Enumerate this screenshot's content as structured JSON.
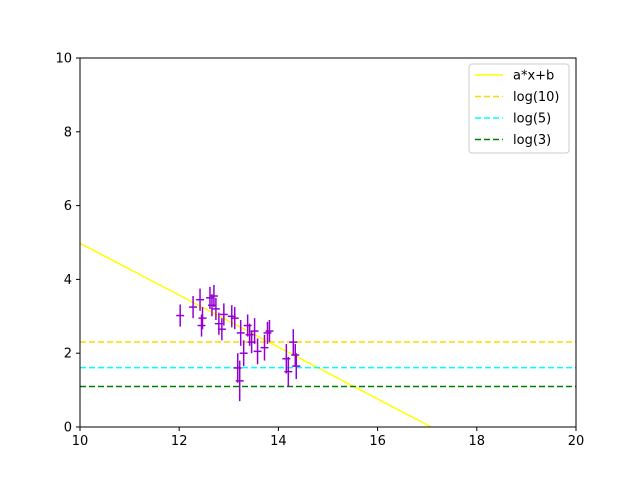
{
  "chart_data": {
    "type": "scatter",
    "title": "",
    "xlabel": "",
    "ylabel": "",
    "xlim": [
      10,
      20
    ],
    "ylim": [
      0,
      10
    ],
    "xticks": [
      10,
      12,
      14,
      16,
      18,
      20
    ],
    "yticks": [
      0,
      2,
      4,
      6,
      8,
      10
    ],
    "grid": false,
    "legend_position": "top-right",
    "series": [
      {
        "name": "a*x+b",
        "kind": "line",
        "style": "solid",
        "color": "#ffff00",
        "x": [
          10,
          17.08
        ],
        "y": [
          4.98,
          0
        ]
      },
      {
        "name": "log(10)",
        "kind": "hline",
        "style": "dashed",
        "color": "#ffd700",
        "y": 2.303
      },
      {
        "name": "log(5)",
        "kind": "hline",
        "style": "dashed",
        "color": "#00ffff",
        "y": 1.609
      },
      {
        "name": "log(3)",
        "kind": "hline",
        "style": "dashed",
        "color": "#008000",
        "y": 1.099
      },
      {
        "kind": "errorbar",
        "color": "#9400d3",
        "points": [
          {
            "x": 12.02,
            "y": 3.02,
            "xerr": 0.08,
            "yerr": 0.3
          },
          {
            "x": 12.28,
            "y": 3.25,
            "xerr": 0.08,
            "yerr": 0.3
          },
          {
            "x": 12.42,
            "y": 3.45,
            "xerr": 0.08,
            "yerr": 0.3
          },
          {
            "x": 12.45,
            "y": 2.75,
            "xerr": 0.08,
            "yerr": 0.3
          },
          {
            "x": 12.47,
            "y": 2.95,
            "xerr": 0.08,
            "yerr": 0.3
          },
          {
            "x": 12.62,
            "y": 3.5,
            "xerr": 0.08,
            "yerr": 0.3
          },
          {
            "x": 12.66,
            "y": 3.3,
            "xerr": 0.08,
            "yerr": 0.3
          },
          {
            "x": 12.7,
            "y": 3.55,
            "xerr": 0.08,
            "yerr": 0.3
          },
          {
            "x": 12.74,
            "y": 3.2,
            "xerr": 0.08,
            "yerr": 0.3
          },
          {
            "x": 12.8,
            "y": 2.8,
            "xerr": 0.08,
            "yerr": 0.3
          },
          {
            "x": 12.86,
            "y": 2.65,
            "xerr": 0.08,
            "yerr": 0.3
          },
          {
            "x": 12.9,
            "y": 3.05,
            "xerr": 0.08,
            "yerr": 0.3
          },
          {
            "x": 13.06,
            "y": 3.0,
            "xerr": 0.08,
            "yerr": 0.3
          },
          {
            "x": 13.12,
            "y": 2.95,
            "xerr": 0.08,
            "yerr": 0.3
          },
          {
            "x": 13.18,
            "y": 1.6,
            "xerr": 0.08,
            "yerr": 0.4
          },
          {
            "x": 13.22,
            "y": 1.25,
            "xerr": 0.08,
            "yerr": 0.55
          },
          {
            "x": 13.24,
            "y": 2.55,
            "xerr": 0.08,
            "yerr": 0.35
          },
          {
            "x": 13.3,
            "y": 2.0,
            "xerr": 0.08,
            "yerr": 0.35
          },
          {
            "x": 13.38,
            "y": 2.75,
            "xerr": 0.08,
            "yerr": 0.3
          },
          {
            "x": 13.42,
            "y": 2.5,
            "xerr": 0.08,
            "yerr": 0.3
          },
          {
            "x": 13.46,
            "y": 2.3,
            "xerr": 0.08,
            "yerr": 0.3
          },
          {
            "x": 13.52,
            "y": 2.6,
            "xerr": 0.08,
            "yerr": 0.35
          },
          {
            "x": 13.58,
            "y": 2.05,
            "xerr": 0.08,
            "yerr": 0.35
          },
          {
            "x": 13.72,
            "y": 2.15,
            "xerr": 0.08,
            "yerr": 0.35
          },
          {
            "x": 13.78,
            "y": 2.55,
            "xerr": 0.08,
            "yerr": 0.3
          },
          {
            "x": 13.82,
            "y": 2.6,
            "xerr": 0.08,
            "yerr": 0.3
          },
          {
            "x": 14.16,
            "y": 1.85,
            "xerr": 0.08,
            "yerr": 0.4
          },
          {
            "x": 14.2,
            "y": 1.5,
            "xerr": 0.08,
            "yerr": 0.4
          },
          {
            "x": 14.3,
            "y": 2.3,
            "xerr": 0.08,
            "yerr": 0.35
          },
          {
            "x": 14.34,
            "y": 1.95,
            "xerr": 0.08,
            "yerr": 0.3
          },
          {
            "x": 14.36,
            "y": 1.65,
            "xerr": 0.08,
            "yerr": 0.35
          }
        ]
      }
    ]
  }
}
